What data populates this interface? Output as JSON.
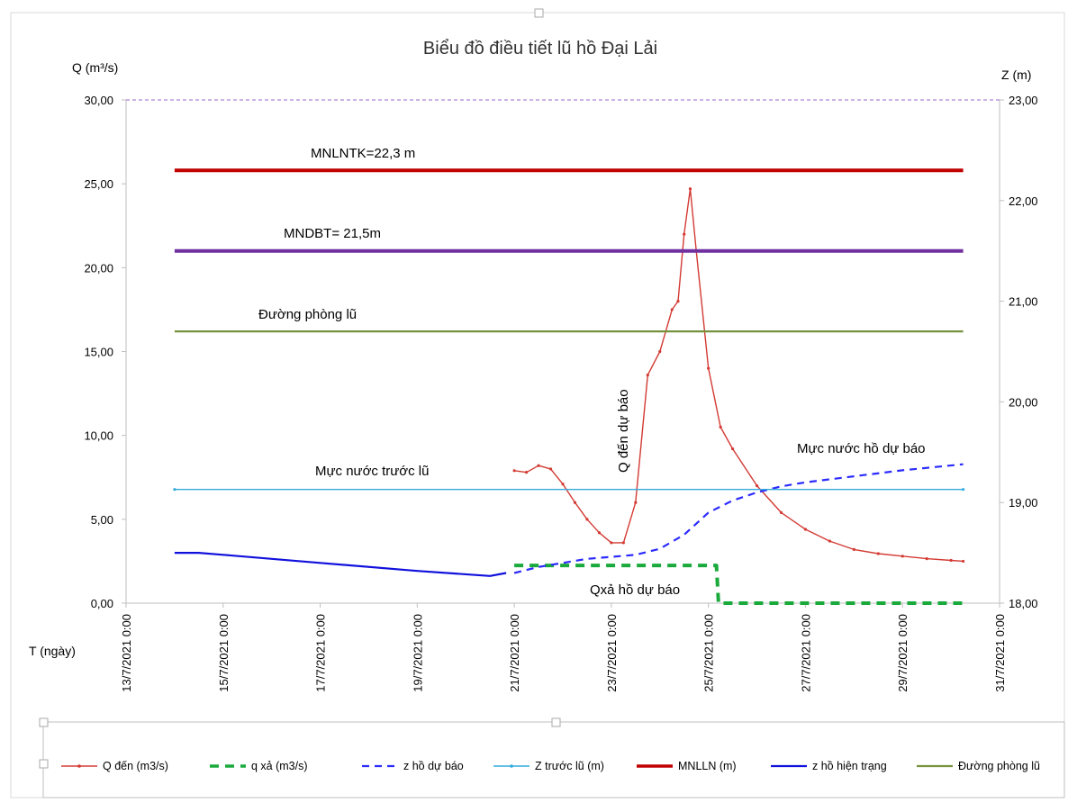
{
  "chart_data": {
    "type": "line",
    "title": "Biểu đồ điều tiết lũ hồ Đại Lải",
    "ylabel": "Q (m³/s)",
    "y2label": "Z (m)",
    "xlabel": "T (ngày)",
    "ylim": [
      0,
      30
    ],
    "y2lim": [
      18,
      23
    ],
    "y_ticks": [
      "0,00",
      "5,00",
      "10,00",
      "15,00",
      "20,00",
      "25,00",
      "30,00"
    ],
    "y2_ticks": [
      "18,00",
      "19,00",
      "20,00",
      "21,00",
      "22,00",
      "23,00"
    ],
    "x_range_days": [
      "2021-07-13",
      "2021-07-31"
    ],
    "x_ticks": [
      "13/7/2021 0:00",
      "15/7/2021 0:00",
      "17/7/2021 0:00",
      "19/7/2021 0:00",
      "21/7/2021 0:00",
      "23/7/2021 0:00",
      "25/7/2021 0:00",
      "27/7/2021 0:00",
      "29/7/2021 0:00",
      "31/7/2021 0:00"
    ],
    "gridlines": false,
    "legend_position": "bottom",
    "annotations": {
      "mnlntk": "MNLNTK=22,3 m",
      "mndbt": "MNDBT= 21,5m",
      "phong_lu": "Đường phòng lũ",
      "truoc_lu": "Mực nước trước lũ",
      "q_den": "Q đến dự báo",
      "muc_nuoc_ho": "Mực nước hồ dự báo",
      "q_xa": "Qxả hồ dự báo"
    },
    "series": [
      {
        "name": "Q đến (m3/s)",
        "axis": "left",
        "color": "#d33a33",
        "style": "line-dots",
        "x": [
          "2021-07-21 00:00",
          "2021-07-21 06:00",
          "2021-07-21 12:00",
          "2021-07-21 18:00",
          "2021-07-22 00:00",
          "2021-07-22 06:00",
          "2021-07-22 12:00",
          "2021-07-22 18:00",
          "2021-07-23 00:00",
          "2021-07-23 06:00",
          "2021-07-23 12:00",
          "2021-07-23 18:00",
          "2021-07-24 00:00",
          "2021-07-24 06:00",
          "2021-07-24 09:00",
          "2021-07-24 12:00",
          "2021-07-24 15:00",
          "2021-07-24 18:00",
          "2021-07-25 00:00",
          "2021-07-25 06:00",
          "2021-07-25 12:00",
          "2021-07-26 00:00",
          "2021-07-26 12:00",
          "2021-07-27 00:00",
          "2021-07-27 12:00",
          "2021-07-28 00:00",
          "2021-07-28 12:00",
          "2021-07-29 00:00",
          "2021-07-29 12:00",
          "2021-07-30 00:00",
          "2021-07-30 06:00"
        ],
        "values": [
          7.9,
          7.8,
          8.2,
          8.0,
          7.1,
          6.0,
          5.0,
          4.2,
          3.6,
          3.6,
          6.0,
          13.6,
          15.0,
          17.5,
          18.0,
          22.0,
          24.7,
          21.0,
          14.0,
          10.5,
          9.2,
          7.0,
          5.4,
          4.4,
          3.7,
          3.2,
          2.95,
          2.8,
          2.65,
          2.55,
          2.5
        ]
      },
      {
        "name": "q xả    (m3/s)",
        "axis": "left",
        "color": "#1aaa3c",
        "style": "thick-dash",
        "x": [
          "2021-07-21 00:00",
          "2021-07-25 00:00",
          "2021-07-25 04:00",
          "2021-07-25 05:00",
          "2021-07-30 06:00"
        ],
        "values": [
          2.25,
          2.25,
          2.25,
          0.0,
          0.0
        ]
      },
      {
        "name": "z hồ dự báo",
        "axis": "right",
        "color": "#2b2bff",
        "style": "dash",
        "x": [
          "2021-07-21 00:00",
          "2021-07-21 12:00",
          "2021-07-22 00:00",
          "2021-07-22 12:00",
          "2021-07-23 00:00",
          "2021-07-23 12:00",
          "2021-07-24 00:00",
          "2021-07-24 12:00",
          "2021-07-25 00:00",
          "2021-07-25 12:00",
          "2021-07-26 00:00",
          "2021-07-26 12:00",
          "2021-07-27 00:00",
          "2021-07-28 00:00",
          "2021-07-29 00:00",
          "2021-07-30 06:00"
        ],
        "values": [
          18.3,
          18.36,
          18.4,
          18.44,
          18.46,
          18.48,
          18.54,
          18.68,
          18.9,
          19.02,
          19.1,
          19.16,
          19.2,
          19.26,
          19.32,
          19.38
        ]
      },
      {
        "name": "Z trước lũ (m)",
        "axis": "right",
        "color": "#33aadd",
        "style": "line-dots",
        "x": [
          "2021-07-14 00:00",
          "2021-07-30 06:00"
        ],
        "values": [
          19.13,
          19.13
        ]
      },
      {
        "name": "MNLLN (m)",
        "axis": "right",
        "color": "#c00000",
        "style": "thick-line",
        "x": [
          "2021-07-14 00:00",
          "2021-07-30 06:00"
        ],
        "values": [
          22.3,
          22.3
        ]
      },
      {
        "name": "z hồ hiện trạng",
        "axis": "right",
        "color": "#1010dd",
        "style": "line",
        "x": [
          "2021-07-14 00:00",
          "2021-07-14 12:00",
          "2021-07-15 00:00",
          "2021-07-17 00:00",
          "2021-07-19 00:00",
          "2021-07-20 12:00",
          "2021-07-20 20:00"
        ],
        "values": [
          18.5,
          18.5,
          18.48,
          18.4,
          18.32,
          18.27,
          18.3
        ]
      },
      {
        "name": "Đường phòng lũ",
        "axis": "right",
        "color": "#76923c",
        "style": "line",
        "x": [
          "2021-07-14 00:00",
          "2021-07-30 06:00"
        ],
        "values": [
          20.7,
          20.7
        ]
      },
      {
        "name": "MNDBT",
        "axis": "right",
        "color": "#7030a0",
        "style": "thick-line",
        "legend": false,
        "x": [
          "2021-07-14 00:00",
          "2021-07-30 06:00"
        ],
        "values": [
          21.5,
          21.5
        ]
      },
      {
        "name": "Top",
        "axis": "left",
        "color": "#9966cc",
        "style": "thin-dash",
        "legend": false,
        "x": [
          "2021-07-13 00:00",
          "2021-07-31 00:00"
        ],
        "values": [
          30,
          30
        ]
      }
    ]
  }
}
